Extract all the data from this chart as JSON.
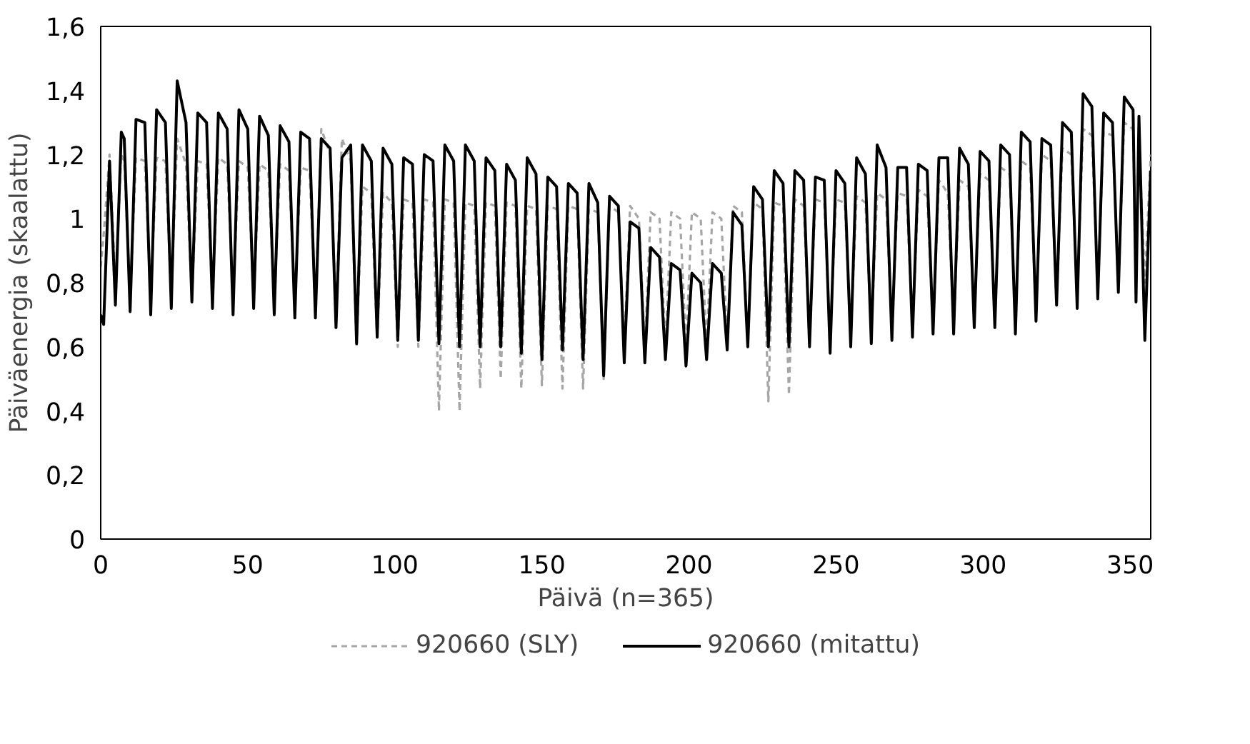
{
  "chart_data": {
    "type": "line",
    "xlabel": "Päivä (n=365)",
    "ylabel": "Päiväenergia (skaalattu)",
    "x": [
      0,
      1,
      3,
      5,
      7,
      8,
      10,
      12,
      15,
      17,
      19,
      22,
      24,
      26,
      29,
      31,
      33,
      36,
      38,
      40,
      43,
      45,
      47,
      50,
      52,
      54,
      57,
      59,
      61,
      64,
      66,
      68,
      71,
      73,
      75,
      78,
      80,
      82,
      85,
      87,
      89,
      92,
      94,
      96,
      99,
      101,
      103,
      106,
      108,
      110,
      113,
      115,
      117,
      120,
      122,
      124,
      127,
      129,
      131,
      134,
      136,
      138,
      141,
      143,
      145,
      148,
      150,
      152,
      155,
      157,
      159,
      162,
      164,
      166,
      169,
      171,
      173,
      176,
      178,
      180,
      183,
      185,
      187,
      190,
      192,
      194,
      197,
      199,
      201,
      204,
      206,
      208,
      211,
      213,
      215,
      218,
      220,
      222,
      225,
      227,
      229,
      232,
      234,
      236,
      239,
      241,
      243,
      246,
      248,
      250,
      253,
      255,
      257,
      260,
      262,
      264,
      267,
      269,
      271,
      274,
      276,
      278,
      281,
      283,
      285,
      288,
      290,
      292,
      295,
      297,
      299,
      302,
      304,
      306,
      309,
      311,
      313,
      316,
      318,
      320,
      323,
      325,
      327,
      330,
      332,
      334,
      337,
      339,
      341,
      344,
      346,
      348,
      351,
      352,
      353,
      355,
      357
    ],
    "series": [
      {
        "name": "920660 (SLY)",
        "color": "#a6a6a6",
        "line_style": "dashed",
        "values": [
          0.85,
          0.95,
          1.2,
          0.8,
          1.2,
          1.18,
          0.75,
          1.19,
          1.18,
          0.75,
          1.19,
          1.18,
          0.75,
          1.25,
          1.17,
          0.75,
          1.18,
          1.17,
          0.75,
          1.19,
          1.17,
          0.75,
          1.18,
          1.16,
          0.75,
          1.17,
          1.15,
          0.73,
          1.17,
          1.15,
          0.73,
          1.16,
          1.15,
          0.72,
          1.28,
          1.2,
          0.7,
          1.25,
          1.18,
          0.6,
          1.1,
          1.08,
          0.62,
          1.08,
          1.05,
          0.6,
          1.06,
          1.05,
          0.6,
          1.06,
          1.05,
          0.4,
          1.06,
          1.05,
          0.4,
          1.05,
          1.04,
          0.47,
          1.05,
          1.04,
          0.5,
          1.05,
          1.04,
          0.47,
          1.04,
          1.03,
          0.48,
          1.04,
          1.03,
          0.47,
          1.04,
          1.03,
          0.47,
          1.03,
          1.02,
          0.5,
          1.04,
          1.02,
          0.6,
          1.04,
          1.0,
          0.6,
          1.02,
          1.0,
          0.6,
          1.02,
          1.0,
          0.6,
          1.02,
          1.0,
          0.6,
          1.02,
          1.0,
          0.62,
          1.04,
          1.02,
          0.62,
          1.05,
          1.03,
          0.43,
          1.05,
          1.04,
          0.45,
          1.06,
          1.04,
          0.62,
          1.06,
          1.05,
          0.62,
          1.06,
          1.05,
          0.63,
          1.07,
          1.05,
          0.64,
          1.08,
          1.06,
          0.65,
          1.08,
          1.07,
          0.65,
          1.09,
          1.07,
          0.66,
          1.12,
          1.08,
          0.66,
          1.12,
          1.1,
          0.68,
          1.14,
          1.12,
          0.68,
          1.16,
          1.14,
          0.68,
          1.18,
          1.16,
          0.7,
          1.2,
          1.18,
          0.74,
          1.22,
          1.2,
          0.76,
          1.28,
          1.26,
          0.78,
          1.27,
          1.26,
          0.8,
          1.3,
          1.28,
          0.85,
          1.25,
          0.8,
          1.2
        ]
      },
      {
        "name": "920660 (mitattu)",
        "color": "#000000",
        "line_style": "solid",
        "values": [
          0.7,
          0.67,
          1.18,
          0.73,
          1.27,
          1.25,
          0.71,
          1.31,
          1.3,
          0.7,
          1.34,
          1.3,
          0.72,
          1.43,
          1.3,
          0.74,
          1.33,
          1.3,
          0.72,
          1.33,
          1.28,
          0.7,
          1.34,
          1.28,
          0.72,
          1.32,
          1.26,
          0.7,
          1.29,
          1.24,
          0.69,
          1.27,
          1.25,
          0.69,
          1.25,
          1.22,
          0.66,
          1.19,
          1.23,
          0.61,
          1.23,
          1.18,
          0.63,
          1.22,
          1.17,
          0.62,
          1.19,
          1.17,
          0.62,
          1.2,
          1.18,
          0.61,
          1.23,
          1.18,
          0.6,
          1.23,
          1.18,
          0.6,
          1.19,
          1.15,
          0.6,
          1.17,
          1.12,
          0.58,
          1.19,
          1.14,
          0.56,
          1.13,
          1.1,
          0.59,
          1.11,
          1.08,
          0.56,
          1.11,
          1.05,
          0.51,
          1.07,
          1.04,
          0.55,
          0.99,
          0.97,
          0.55,
          0.91,
          0.88,
          0.56,
          0.86,
          0.84,
          0.54,
          0.83,
          0.8,
          0.56,
          0.86,
          0.83,
          0.59,
          1.02,
          0.98,
          0.6,
          1.1,
          1.06,
          0.6,
          1.15,
          1.11,
          0.6,
          1.15,
          1.12,
          0.6,
          1.13,
          1.12,
          0.58,
          1.15,
          1.11,
          0.6,
          1.19,
          1.14,
          0.61,
          1.23,
          1.16,
          0.62,
          1.16,
          1.16,
          0.63,
          1.17,
          1.15,
          0.64,
          1.19,
          1.19,
          0.64,
          1.22,
          1.17,
          0.66,
          1.21,
          1.18,
          0.66,
          1.23,
          1.2,
          0.64,
          1.27,
          1.24,
          0.68,
          1.25,
          1.23,
          0.73,
          1.3,
          1.27,
          0.72,
          1.39,
          1.35,
          0.75,
          1.33,
          1.3,
          0.77,
          1.38,
          1.34,
          0.74,
          1.32,
          0.62,
          1.15
        ]
      }
    ],
    "xlim": [
      0,
      357
    ],
    "xticks": [
      0,
      50,
      100,
      150,
      200,
      250,
      300,
      350
    ],
    "ylim": [
      0,
      1.6
    ],
    "yticks": [
      0,
      {
        "value": 0.2,
        "label": "0,2"
      },
      {
        "value": 0.4,
        "label": "0,4"
      },
      {
        "value": 0.6,
        "label": "0,6"
      },
      {
        "value": 0.8,
        "label": "0,8"
      },
      1,
      {
        "value": 1.2,
        "label": "1,2"
      },
      {
        "value": 1.4,
        "label": "1,4"
      },
      {
        "value": 1.6,
        "label": "1,6"
      }
    ],
    "grid": false,
    "legend": "bottom",
    "marker": "none"
  }
}
